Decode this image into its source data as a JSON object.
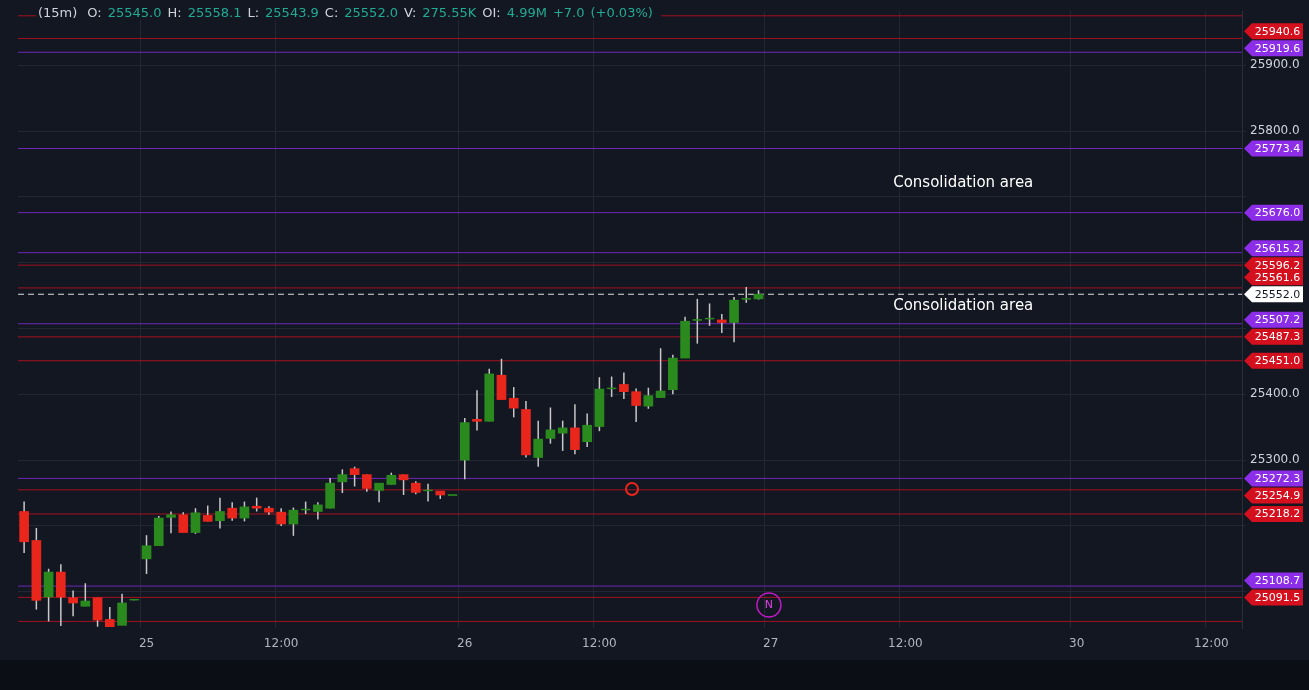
{
  "chart_data": {
    "type": "candlestick",
    "title": "(15m)",
    "subtitle": "O: 25545.0 H: 25558.1 L: 25543.9 C: 25552.0 V: 275.55K OI: 4.99M +7.0 (+0.03%)",
    "categories": [
      null,
      null,
      null,
      null,
      null,
      null,
      null,
      null,
      null,
      null,
      "25",
      null,
      null,
      null,
      null,
      null,
      null,
      null,
      null,
      null,
      null,
      "12:00",
      null,
      null,
      null,
      null,
      null,
      null,
      null,
      null,
      null,
      null,
      null,
      null,
      null,
      null,
      "26",
      null,
      null,
      null,
      null,
      null,
      null,
      null,
      null,
      null,
      null,
      "12:00",
      null,
      null,
      null,
      null,
      null,
      null,
      null,
      null,
      null,
      null,
      null,
      null,
      null,
      "27",
      null,
      null,
      null,
      null,
      null,
      null,
      null,
      null,
      null,
      null,
      "12:00",
      null,
      null,
      null,
      null,
      null,
      null,
      null,
      null,
      null,
      null,
      null,
      null,
      null,
      "30",
      null,
      null,
      null,
      null,
      null,
      null,
      null,
      null,
      null,
      null,
      "12:00",
      null,
      null
    ],
    "ohlc": [
      [
        25222,
        25237,
        25159,
        25176
      ],
      [
        25178,
        25197,
        25073,
        25087
      ],
      [
        25092,
        25135,
        25055,
        25130
      ],
      [
        25130,
        25142,
        25048,
        25092
      ],
      [
        25091,
        25102,
        25063,
        25083
      ],
      [
        25078,
        25113,
        25078,
        25086
      ],
      [
        25091,
        25091,
        25047,
        25057
      ],
      [
        25058,
        25077,
        25047,
        25047
      ],
      [
        25049,
        25097,
        25049,
        25083
      ],
      [
        25088,
        25089,
        25087,
        25088
      ],
      [
        25150,
        25186,
        25127,
        25170
      ],
      [
        25170,
        25215,
        25170,
        25212
      ],
      [
        25213,
        25222,
        25189,
        25217
      ],
      [
        25217,
        25221,
        25190,
        25190
      ],
      [
        25190,
        25227,
        25188,
        25220
      ],
      [
        25216,
        25231,
        25207,
        25207
      ],
      [
        25208,
        25243,
        25196,
        25222
      ],
      [
        25227,
        25236,
        25208,
        25212
      ],
      [
        25212,
        25237,
        25207,
        25229
      ],
      [
        25230,
        25243,
        25222,
        25227
      ],
      [
        25227,
        25230,
        25217,
        25221
      ],
      [
        25221,
        25227,
        25200,
        25203
      ],
      [
        25203,
        25228,
        25185,
        25224
      ],
      [
        25225,
        25237,
        25218,
        25225
      ],
      [
        25222,
        25236,
        25210,
        25232
      ],
      [
        25227,
        25273,
        25227,
        25265
      ],
      [
        25267,
        25286,
        25250,
        25278
      ],
      [
        25287,
        25290,
        25260,
        25278
      ],
      [
        25278,
        25278,
        25252,
        25257
      ],
      [
        25254,
        25265,
        25236,
        25265
      ],
      [
        25263,
        25281,
        25263,
        25277
      ],
      [
        25278,
        25278,
        25247,
        25270
      ],
      [
        25265,
        25268,
        25248,
        25251
      ],
      [
        25254,
        25264,
        25237,
        25254
      ],
      [
        25253,
        25253,
        25241,
        25247
      ],
      [
        25247,
        25247,
        25247,
        25247
      ],
      [
        25300,
        25364,
        25271,
        25357
      ],
      [
        25362,
        25406,
        25345,
        25359
      ],
      [
        25359,
        25439,
        25359,
        25431
      ],
      [
        25429,
        25454,
        25392,
        25392
      ],
      [
        25394,
        25411,
        25365,
        25379
      ],
      [
        25377,
        25390,
        25304,
        25308
      ],
      [
        25304,
        25360,
        25290,
        25332
      ],
      [
        25333,
        25380,
        25325,
        25346
      ],
      [
        25341,
        25360,
        25314,
        25349
      ],
      [
        25349,
        25385,
        25309,
        25316
      ],
      [
        25328,
        25371,
        25320,
        25353
      ],
      [
        25351,
        25426,
        25344,
        25408
      ],
      [
        25409,
        25427,
        25396,
        25409
      ],
      [
        25415,
        25433,
        25393,
        25404
      ],
      [
        25404,
        25409,
        25358,
        25383
      ],
      [
        25382,
        25410,
        25378,
        25398
      ],
      [
        25395,
        25470,
        25395,
        25405
      ],
      [
        25407,
        25460,
        25400,
        25455
      ],
      [
        25455,
        25518,
        25455,
        25511
      ],
      [
        25513,
        25545,
        25477,
        25513
      ],
      [
        25515,
        25538,
        25504,
        25515
      ],
      [
        25513,
        25522,
        25493,
        25509
      ],
      [
        25509,
        25548,
        25479,
        25543
      ],
      [
        25545,
        25563,
        25539,
        25545
      ],
      [
        25545.0,
        25558.1,
        25543.9,
        25552.0
      ],
      null,
      null,
      null,
      null,
      null,
      null,
      null,
      null,
      null,
      null,
      null,
      null,
      null,
      null,
      null,
      null,
      null,
      null,
      null,
      null,
      null,
      null,
      null,
      null,
      null,
      null,
      null,
      null,
      null,
      null,
      null,
      null,
      null,
      null,
      null,
      null,
      null,
      null,
      null
    ],
    "colors": [
      "#e8261c",
      "#e8261c",
      "#2b8a1e",
      "#e8261c",
      "#e8261c",
      "#2b8a1e",
      "#e8261c",
      "#e8261c",
      "#2b8a1e",
      "#2b8a1e",
      "#2b8a1e",
      "#2b8a1e",
      "#2b8a1e",
      "#e8261c",
      "#2b8a1e",
      "#e8261c",
      "#2b8a1e",
      "#e8261c",
      "#2b8a1e",
      "#e8261c",
      "#e8261c",
      "#e8261c",
      "#2b8a1e",
      "#2b8a1e",
      "#2b8a1e",
      "#2b8a1e",
      "#2b8a1e",
      "#e8261c",
      "#e8261c",
      "#2b8a1e",
      "#2b8a1e",
      "#e8261c",
      "#e8261c",
      "#2b8a1e",
      "#e8261c",
      "#2b8a1e",
      "#2b8a1e",
      "#e8261c",
      "#2b8a1e",
      "#e8261c",
      "#e8261c",
      "#e8261c",
      "#2b8a1e",
      "#2b8a1e",
      "#2b8a1e",
      "#e8261c",
      "#2b8a1e",
      "#2b8a1e",
      "#2b8a1e",
      "#e8261c",
      "#e8261c",
      "#2b8a1e",
      "#2b8a1e",
      "#2b8a1e",
      "#2b8a1e",
      "#2b8a1e",
      "#2b8a1e",
      "#e8261c",
      "#2b8a1e",
      "#2b8a1e",
      "#2b8a1e",
      null,
      null,
      null,
      null,
      null,
      null,
      null,
      null,
      null,
      null,
      null,
      null,
      null,
      null,
      null,
      null,
      null,
      null,
      null,
      null,
      null,
      null,
      null,
      null,
      null,
      null,
      null,
      null,
      null,
      null,
      null,
      null,
      null,
      null,
      null,
      null,
      null,
      null,
      null
    ],
    "ylim": [
      25045,
      25982
    ],
    "yticks": [
      {
        "value": 25100,
        "label": null
      },
      {
        "value": 25200,
        "label": null
      },
      {
        "value": 25300,
        "label": "25300.0"
      },
      {
        "value": 25400,
        "label": "25400.0"
      },
      {
        "value": 25500,
        "label": null
      },
      {
        "value": 25600,
        "label": null
      },
      {
        "value": 25700,
        "label": null
      },
      {
        "value": 25800,
        "label": "25800.0"
      },
      {
        "value": 25900,
        "label": "25900.0"
      }
    ],
    "grid": true,
    "ref_lines": [
      {
        "axis": "y",
        "value": 25975,
        "color": "#d4101e"
      },
      {
        "axis": "y",
        "value": 25940.6,
        "label": "25940.6",
        "color": "#d4101e"
      },
      {
        "axis": "y",
        "value": 25919.6,
        "label": "25919.6",
        "color": "#8c2de8"
      },
      {
        "axis": "y",
        "value": 25773.4,
        "label": "25773.4",
        "color": "#8c2de8"
      },
      {
        "axis": "y",
        "value": 25676.0,
        "label": "25676.0",
        "color": "#8c2de8"
      },
      {
        "axis": "y",
        "value": 25615.2,
        "label": "25615.2",
        "color": "#8c2de8"
      },
      {
        "axis": "y",
        "value": 25596.2,
        "label": "25596.2",
        "color": "#d4101e"
      },
      {
        "axis": "y",
        "value": 25561.6,
        "label": "25561.6",
        "color": "#d4101e"
      },
      {
        "axis": "y",
        "value": 25552.0,
        "label": "25552.0",
        "color": "#ffffff",
        "line_style": "dashed"
      },
      {
        "axis": "y",
        "value": 25507.2,
        "label": "25507.2",
        "color": "#8c2de8"
      },
      {
        "axis": "y",
        "value": 25487.3,
        "label": "25487.3",
        "color": "#d4101e"
      },
      {
        "axis": "y",
        "value": 25451.0,
        "label": "25451.0",
        "color": "#d4101e"
      },
      {
        "axis": "y",
        "value": 25272.3,
        "label": "25272.3",
        "color": "#8c2de8"
      },
      {
        "axis": "y",
        "value": 25254.9,
        "label": "25254.9",
        "color": "#d4101e"
      },
      {
        "axis": "y",
        "value": 25218.2,
        "label": "25218.2",
        "color": "#d4101e"
      },
      {
        "axis": "y",
        "value": 25108.7,
        "label": "25108.7",
        "color": "#8c2de8"
      },
      {
        "axis": "y",
        "value": 25091.5,
        "label": "25091.5",
        "color": "#d4101e"
      },
      {
        "axis": "y",
        "value": 25055,
        "color": "#d4101e"
      }
    ],
    "annotations": [
      "Consolidation area",
      "Consolidation area",
      "N"
    ]
  }
}
